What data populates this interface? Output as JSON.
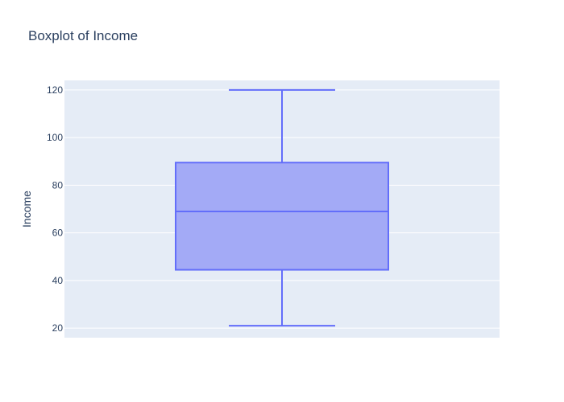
{
  "chart_data": {
    "type": "box",
    "title": "Boxplot of Income",
    "ylabel": "Income",
    "xlabel": "",
    "ylim": [
      16,
      124
    ],
    "yticks": [
      20,
      40,
      60,
      80,
      100,
      120
    ],
    "grid": true,
    "series": [
      {
        "whisker_low": 21,
        "q1": 44.5,
        "median": 69,
        "q3": 89.5,
        "whisker_high": 120
      }
    ],
    "colors": {
      "box_line": "#636efa",
      "box_fill": "#a3aaf6",
      "plot_bg": "#e5ecf6",
      "grid": "#ffffff",
      "text": "#2a3f5f"
    }
  }
}
